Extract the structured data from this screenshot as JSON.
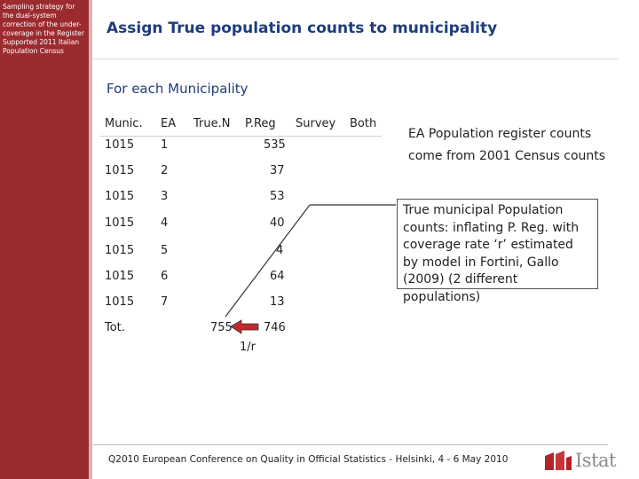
{
  "sidebar": {
    "text": "Sampling strategy for\nthe dual-system\ncorrection of the under-\ncoverage in the Register\nSupported 2011 Italian\nPopulation Census"
  },
  "header": {
    "title": "Assign True population counts to municipality"
  },
  "section": {
    "subtitle": "For each Municipality"
  },
  "table": {
    "headers": [
      "Munic.",
      "EA",
      "True.N",
      "P.Reg",
      "Survey",
      "Both"
    ],
    "rows": [
      {
        "munic": "1015",
        "ea": "1",
        "preg": "535"
      },
      {
        "munic": "1015",
        "ea": "2",
        "preg": "37"
      },
      {
        "munic": "1015",
        "ea": "3",
        "preg": "53"
      },
      {
        "munic": "1015",
        "ea": "4",
        "preg": "40"
      },
      {
        "munic": "1015",
        "ea": "5",
        "preg": "4"
      },
      {
        "munic": "1015",
        "ea": "6",
        "preg": "64"
      },
      {
        "munic": "1015",
        "ea": "7",
        "preg": "13"
      }
    ],
    "total": {
      "label": "Tot.",
      "true_n": "755",
      "preg": "746"
    },
    "arrow_label": "1/r"
  },
  "notes": {
    "ea_counts": "EA Population register counts come from 2001 Census counts",
    "true_counts": "True municipal Population counts: inflating P. Reg. with coverage rate ‘r’ estimated by model in Fortini, Gallo (2009) (2 different populations)"
  },
  "footer": {
    "text": "Q2010 European Conference on Quality in Official Statistics - Helsinki, 4 - 6 May 2010"
  },
  "logo": {
    "text": "Istat"
  },
  "colors": {
    "sidebar": "#9b2b2f",
    "title": "#1f3d7a",
    "arrow": "#c0282e"
  }
}
